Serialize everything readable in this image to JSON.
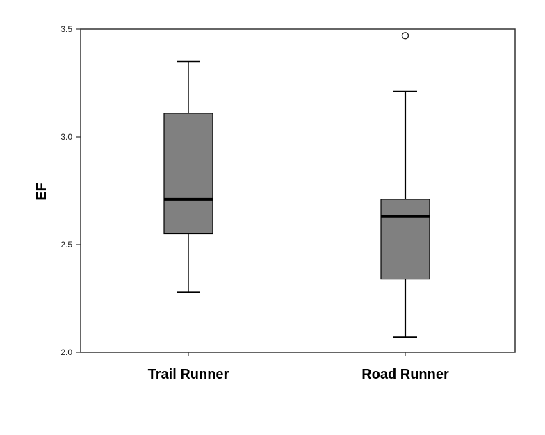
{
  "chart_data": {
    "type": "box",
    "title": "",
    "xlabel": "",
    "ylabel": "EF",
    "ylim": [
      2.0,
      3.5
    ],
    "yticks": [
      "2.0",
      "2.5",
      "3.0",
      "3.5"
    ],
    "grid": false,
    "legend": "none",
    "colors": {
      "box_fill": "#808080",
      "stroke": "#000000",
      "frame": "#333333"
    },
    "categories": [
      "Trail Runner",
      "Road Runner"
    ],
    "boxes": [
      {
        "category": "Trail Runner",
        "whisker_low": 2.28,
        "q1": 2.55,
        "median": 2.71,
        "q3": 3.11,
        "whisker_high": 3.35,
        "outliers": []
      },
      {
        "category": "Road Runner",
        "whisker_low": 2.07,
        "q1": 2.34,
        "median": 2.63,
        "q3": 2.71,
        "whisker_high": 3.21,
        "outliers": [
          3.47
        ]
      }
    ]
  }
}
